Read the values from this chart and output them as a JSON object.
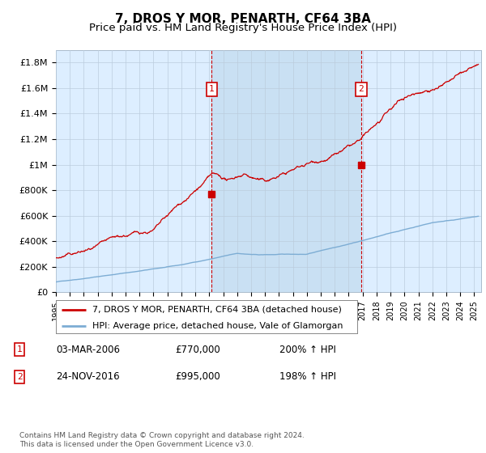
{
  "title": "7, DROS Y MOR, PENARTH, CF64 3BA",
  "subtitle": "Price paid vs. HM Land Registry's House Price Index (HPI)",
  "ylabel_ticks": [
    "£0",
    "£200K",
    "£400K",
    "£600K",
    "£800K",
    "£1M",
    "£1.2M",
    "£1.4M",
    "£1.6M",
    "£1.8M"
  ],
  "ytick_values": [
    0,
    200000,
    400000,
    600000,
    800000,
    1000000,
    1200000,
    1400000,
    1600000,
    1800000
  ],
  "ylim": [
    0,
    1900000
  ],
  "xlim_start": 1995.0,
  "xlim_end": 2025.5,
  "hpi_line_color": "#7dadd4",
  "price_line_color": "#cc0000",
  "background_color": "#ddeeff",
  "shade_color": "#c5ddf0",
  "marker1_date": 2006.17,
  "marker2_date": 2016.9,
  "marker1_price": 770000,
  "marker2_price": 995000,
  "legend_label_price": "7, DROS Y MOR, PENARTH, CF64 3BA (detached house)",
  "legend_label_hpi": "HPI: Average price, detached house, Vale of Glamorgan",
  "table_row1": [
    "1",
    "03-MAR-2006",
    "£770,000",
    "200% ↑ HPI"
  ],
  "table_row2": [
    "2",
    "24-NOV-2016",
    "£995,000",
    "198% ↑ HPI"
  ],
  "footnote": "Contains HM Land Registry data © Crown copyright and database right 2024.\nThis data is licensed under the Open Government Licence v3.0.",
  "title_fontsize": 11,
  "subtitle_fontsize": 9.5
}
